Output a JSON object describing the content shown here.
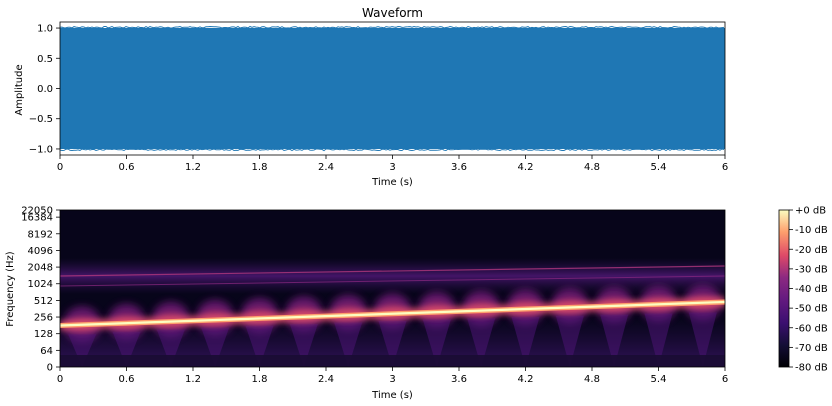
{
  "chart_data": [
    {
      "type": "area",
      "title": "Waveform",
      "xlabel": "Time (s)",
      "ylabel": "Amplitude",
      "xlim": [
        0,
        6
      ],
      "ylim": [
        -1.1,
        1.1
      ],
      "xticks": [
        "0",
        "0.6",
        "1.2",
        "1.8",
        "2.4",
        "3",
        "3.6",
        "4.2",
        "4.8",
        "5.4",
        "6"
      ],
      "yticks": [
        "1.0",
        "0.5",
        "0.0",
        "−0.5",
        "−1.0"
      ],
      "ytick_values": [
        1.0,
        0.5,
        0.0,
        -0.5,
        -1.0
      ],
      "envelope": {
        "x": [
          0,
          6
        ],
        "upper": [
          1.0,
          1.0
        ],
        "lower": [
          -1.0,
          -1.0
        ]
      },
      "color": "#1f77b4",
      "grid": false
    },
    {
      "type": "heatmap",
      "xlabel": "Time (s)",
      "ylabel": "Frequency (Hz)",
      "xlim": [
        0,
        6
      ],
      "y_scale": "symlog",
      "xticks": [
        "0",
        "0.6",
        "1.2",
        "1.8",
        "2.4",
        "3",
        "3.6",
        "4.2",
        "4.8",
        "5.4",
        "6"
      ],
      "yticks": [
        "22050",
        "16384",
        "8192",
        "4096",
        "2048",
        "1024",
        "512",
        "256",
        "128",
        "64",
        "0"
      ],
      "ytick_values": [
        22050,
        16384,
        8192,
        4096,
        2048,
        1024,
        512,
        256,
        128,
        64,
        0
      ],
      "colormap": "magma",
      "fundamental": {
        "time": [
          0,
          6
        ],
        "frequency_hz": [
          180,
          480
        ]
      },
      "harmonic_band_hz": [
        1200,
        2800
      ],
      "colorbar": {
        "ticks": [
          "+0 dB",
          "-10 dB",
          "-20 dB",
          "-30 dB",
          "-40 dB",
          "-50 dB",
          "-60 dB",
          "-70 dB",
          "-80 dB"
        ],
        "values": [
          0,
          -10,
          -20,
          -30,
          -40,
          -50,
          -60,
          -70,
          -80
        ],
        "range_db": [
          -80,
          0
        ]
      }
    }
  ]
}
